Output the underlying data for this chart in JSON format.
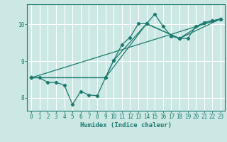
{
  "xlabel": "Humidex (Indice chaleur)",
  "ylabel": "",
  "background_color": "#cce8e4",
  "grid_color": "#ffffff",
  "line_color": "#1a7a6e",
  "xlim": [
    -0.5,
    23.5
  ],
  "ylim": [
    7.65,
    10.55
  ],
  "yticks": [
    8,
    9,
    10
  ],
  "xticks": [
    0,
    1,
    2,
    3,
    4,
    5,
    6,
    7,
    8,
    9,
    10,
    11,
    12,
    13,
    14,
    15,
    16,
    17,
    18,
    19,
    20,
    21,
    22,
    23
  ],
  "series1_x": [
    0,
    1,
    2,
    3,
    4,
    5,
    6,
    7,
    8,
    9,
    10,
    11,
    12,
    13,
    14,
    15,
    16,
    17,
    18,
    19,
    20,
    21,
    22,
    23
  ],
  "series1_y": [
    8.55,
    8.55,
    8.42,
    8.42,
    8.35,
    7.82,
    8.18,
    8.08,
    8.06,
    8.55,
    9.02,
    9.45,
    9.65,
    10.02,
    10.02,
    10.28,
    9.95,
    9.68,
    9.62,
    9.62,
    9.95,
    10.05,
    10.1,
    10.15
  ],
  "series2_x": [
    0,
    9,
    10,
    14,
    18,
    21,
    22,
    23
  ],
  "series2_y": [
    8.55,
    8.55,
    9.02,
    10.02,
    9.62,
    10.05,
    10.1,
    10.15
  ],
  "series3_x": [
    0,
    9,
    14,
    18,
    23
  ],
  "series3_y": [
    8.55,
    8.55,
    10.02,
    9.62,
    10.15
  ],
  "series4_x": [
    0,
    23
  ],
  "series4_y": [
    8.55,
    10.15
  ]
}
